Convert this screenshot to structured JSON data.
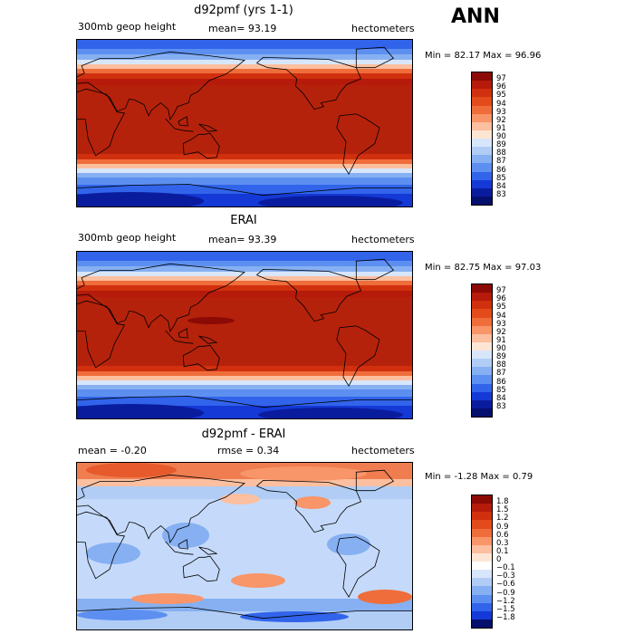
{
  "header": {
    "title": "ANN"
  },
  "panels": [
    {
      "title": "d92pmf (yrs 1-1)",
      "left_label": "300mb geop height",
      "center_label": "mean=  93.19",
      "units": "hectometers",
      "minmax": "Min =  82.17 Max =  96.96",
      "colorbar": {
        "labels": [
          "97",
          "96",
          "95",
          "94",
          "93",
          "92",
          "91",
          "90",
          "89",
          "88",
          "87",
          "86",
          "85",
          "84",
          "83"
        ],
        "colors": [
          "#8b0a05",
          "#b51a0a",
          "#d1300e",
          "#e34b1a",
          "#ef6d3b",
          "#f89569",
          "#fcbf9f",
          "#fde5d4",
          "#d7e6fb",
          "#b1cdf6",
          "#86b0f2",
          "#5c8ff0",
          "#3164ea",
          "#1439d6",
          "#0a1c9e",
          "#050f6d"
        ]
      },
      "map": {
        "type": "geopotential_height",
        "style": "warm_tropics"
      }
    },
    {
      "title": "ERAI",
      "left_label": "300mb geop height",
      "center_label": "mean=  93.39",
      "units": "hectometers",
      "minmax": "Min =  82.75 Max =  97.03",
      "colorbar": {
        "labels": [
          "97",
          "96",
          "95",
          "94",
          "93",
          "92",
          "91",
          "90",
          "89",
          "88",
          "87",
          "86",
          "85",
          "84",
          "83"
        ],
        "colors": [
          "#8b0a05",
          "#b51a0a",
          "#d1300e",
          "#e34b1a",
          "#ef6d3b",
          "#f89569",
          "#fcbf9f",
          "#fde5d4",
          "#d7e6fb",
          "#b1cdf6",
          "#86b0f2",
          "#5c8ff0",
          "#3164ea",
          "#1439d6",
          "#0a1c9e",
          "#050f6d"
        ]
      },
      "map": {
        "type": "geopotential_height",
        "style": "warm_tropics"
      }
    },
    {
      "title": "d92pmf - ERAI",
      "left_label": "mean =  -0.20",
      "center_label": "rmse =   0.34",
      "units": "hectometers",
      "minmax": "Min =  -1.28 Max =   0.79",
      "colorbar": {
        "labels": [
          "1.8",
          "1.5",
          "1.2",
          "0.9",
          "0.6",
          "0.3",
          "0.1",
          "0",
          "-0.1",
          "-0.3",
          "-0.6",
          "-0.9",
          "-1.2",
          "-1.5",
          "-1.8"
        ],
        "colors": [
          "#8b0a05",
          "#b51a0a",
          "#d1300e",
          "#e34b1a",
          "#ef6d3b",
          "#f89569",
          "#fcbf9f",
          "#fde5d4",
          "#ffffff",
          "#d7e6fb",
          "#b1cdf6",
          "#86b0f2",
          "#5c8ff0",
          "#3164ea",
          "#1439d6",
          "#050f6d"
        ]
      },
      "map": {
        "type": "difference",
        "style": "anomaly"
      }
    }
  ]
}
